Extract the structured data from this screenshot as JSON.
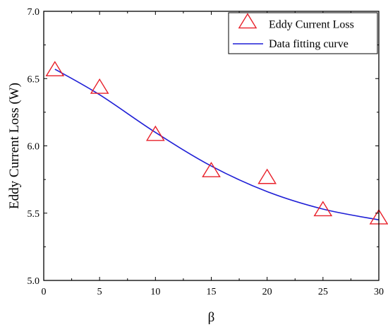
{
  "chart_data": {
    "type": "scatter",
    "title": "",
    "xlabel": "β",
    "ylabel": "Eddy Current Loss (W)",
    "xlim": [
      0,
      30
    ],
    "ylim": [
      5.0,
      7.0
    ],
    "xticks": [
      0,
      5,
      10,
      15,
      20,
      25,
      30
    ],
    "yticks": [
      5.0,
      5.5,
      6.0,
      6.5,
      7.0
    ],
    "xtick_labels": [
      "0",
      "5",
      "10",
      "15",
      "20",
      "25",
      "30"
    ],
    "ytick_labels": [
      "5.0",
      "5.5",
      "6.0",
      "6.5",
      "7.0"
    ],
    "grid": false,
    "legend_position": "top-right",
    "series": [
      {
        "name": "Eddy Current Loss",
        "kind": "scatter",
        "marker": "open-triangle",
        "color": "#e8202a",
        "x": [
          1,
          5,
          10,
          15,
          20,
          25,
          30
        ],
        "y": [
          6.56,
          6.43,
          6.08,
          5.81,
          5.76,
          5.52,
          5.46
        ]
      },
      {
        "name": "Data fitting curve",
        "kind": "line",
        "color": "#1f1fd6",
        "x": [
          1,
          5,
          10,
          15,
          20,
          25,
          30
        ],
        "y": [
          6.57,
          6.38,
          6.1,
          5.85,
          5.66,
          5.53,
          5.45
        ]
      }
    ]
  }
}
